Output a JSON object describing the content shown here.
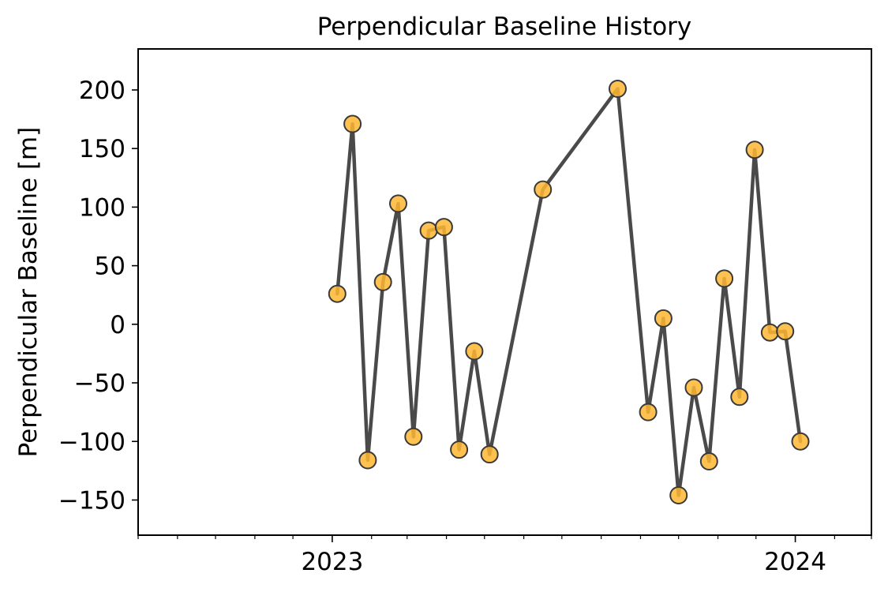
{
  "chart_data": {
    "type": "line",
    "title": "Perpendicular Baseline History",
    "xlabel": "",
    "ylabel": "Perpendicular Baseline [m]",
    "x_axis_type": "date",
    "xlim": [
      "2022-08-01",
      "2024-03-01"
    ],
    "ylim": [
      -180,
      235
    ],
    "x_major_ticks": [
      {
        "value": "2023-01-01",
        "label": "2023"
      },
      {
        "value": "2024-01-01",
        "label": "2024"
      }
    ],
    "x_minor_ticks": [
      "2022-08-01",
      "2022-09-01",
      "2022-10-01",
      "2022-11-01",
      "2022-12-01",
      "2023-02-01",
      "2023-03-01",
      "2023-04-01",
      "2023-05-01",
      "2023-06-01",
      "2023-07-01",
      "2023-08-01",
      "2023-09-01",
      "2023-10-01",
      "2023-11-01",
      "2023-12-01",
      "2024-02-01",
      "2024-03-01"
    ],
    "y_ticks": [
      {
        "value": 200,
        "label": "200"
      },
      {
        "value": 150,
        "label": "150"
      },
      {
        "value": 100,
        "label": "100"
      },
      {
        "value": 50,
        "label": "50"
      },
      {
        "value": 0,
        "label": "0"
      },
      {
        "value": -50,
        "label": "−50"
      },
      {
        "value": -100,
        "label": "−100"
      },
      {
        "value": -150,
        "label": "−150"
      }
    ],
    "grid": false,
    "legend": false,
    "line_color": "#4a4a4a",
    "marker_face_color": "#ffb733",
    "marker_edge_color": "#3a3a3a",
    "series": [
      {
        "x": [
          "2023-01-05",
          "2023-01-17",
          "2023-01-29",
          "2023-02-10",
          "2023-02-22",
          "2023-03-06",
          "2023-03-18",
          "2023-03-30",
          "2023-04-11",
          "2023-04-23",
          "2023-05-05",
          "2023-06-16",
          "2023-08-14",
          "2023-09-07",
          "2023-09-19",
          "2023-10-01",
          "2023-10-13",
          "2023-10-25",
          "2023-11-06",
          "2023-11-18",
          "2023-11-30",
          "2023-12-12",
          "2023-12-24",
          "2024-01-05"
        ],
        "y": [
          26,
          171,
          -116,
          36,
          103,
          -96,
          80,
          83,
          -107,
          -23,
          -111,
          115,
          201,
          -75,
          5,
          -146,
          -54,
          -117,
          39,
          -62,
          149,
          -7,
          -6,
          -100
        ]
      }
    ]
  }
}
